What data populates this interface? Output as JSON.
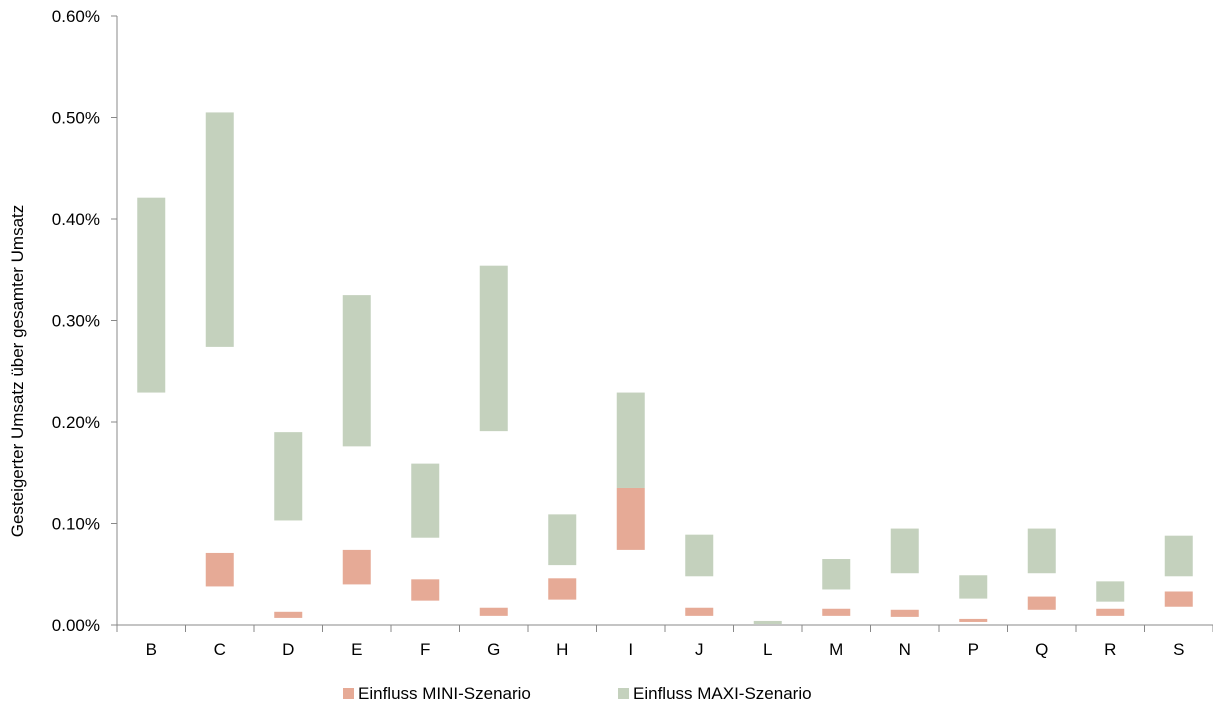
{
  "chart_data": {
    "type": "bar",
    "subtype": "floating-range",
    "ylabel": "Gesteigerter Umsatz über gesamter Umsatz",
    "ylim": [
      0,
      0.006
    ],
    "yticks": [
      "0.00%",
      "0.10%",
      "0.20%",
      "0.30%",
      "0.40%",
      "0.50%",
      "0.60%"
    ],
    "categories": [
      "B",
      "C",
      "D",
      "E",
      "F",
      "G",
      "H",
      "I",
      "J",
      "L",
      "M",
      "N",
      "P",
      "Q",
      "R",
      "S"
    ],
    "grid": false,
    "legend_position": "bottom",
    "series": [
      {
        "name": "Einfluss MINI-Szenario",
        "color": "#e6aa96",
        "ranges": [
          null,
          [
            0.00038,
            0.00071
          ],
          [
            7e-05,
            0.00013
          ],
          [
            0.0004,
            0.00074
          ],
          [
            0.00024,
            0.00045
          ],
          [
            9e-05,
            0.00017
          ],
          [
            0.00025,
            0.00046
          ],
          [
            0.00074,
            0.00135
          ],
          [
            9e-05,
            0.00017
          ],
          null,
          [
            9e-05,
            0.00016
          ],
          [
            8e-05,
            0.00015
          ],
          [
            3e-05,
            6e-05
          ],
          [
            0.00015,
            0.00028
          ],
          [
            9e-05,
            0.00016
          ],
          [
            0.00018,
            0.00033
          ]
        ]
      },
      {
        "name": "Einfluss MAXI-Szenario",
        "color": "#c4d1bd",
        "ranges": [
          [
            0.00229,
            0.00421
          ],
          [
            0.00274,
            0.00505
          ],
          [
            0.00103,
            0.0019
          ],
          [
            0.00176,
            0.00325
          ],
          [
            0.00086,
            0.00159
          ],
          [
            0.00191,
            0.00354
          ],
          [
            0.00059,
            0.00109
          ],
          [
            0.00135,
            0.00229
          ],
          [
            0.00048,
            0.00089
          ],
          [
            1e-05,
            4e-05
          ],
          [
            0.00035,
            0.00065
          ],
          [
            0.00051,
            0.00095
          ],
          [
            0.00026,
            0.00049
          ],
          [
            0.00051,
            0.00095
          ],
          [
            0.00023,
            0.00043
          ],
          [
            0.00048,
            0.00088
          ]
        ]
      }
    ]
  }
}
